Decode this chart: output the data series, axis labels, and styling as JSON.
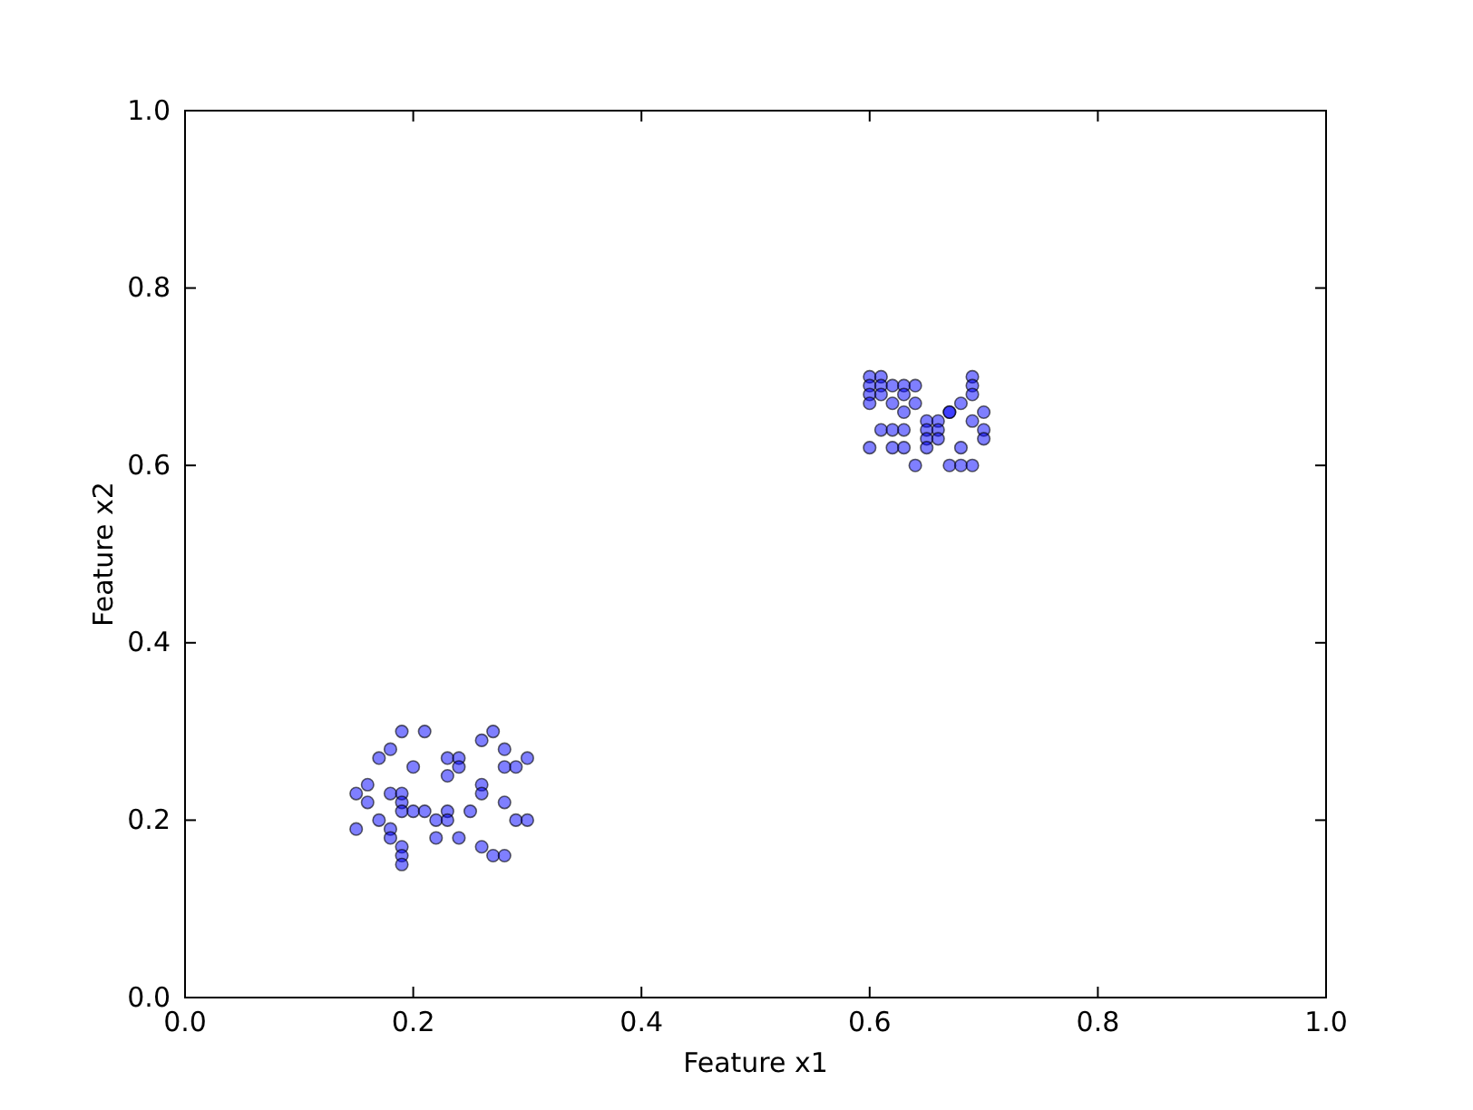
{
  "chart_data": {
    "type": "scatter",
    "xlabel": "Feature x1",
    "ylabel": "Feature x2",
    "xlim": [
      0,
      1
    ],
    "ylim": [
      0,
      1
    ],
    "xticks": [
      {
        "value": 0,
        "label": "0.0"
      },
      {
        "value": 0.2,
        "label": "0.2"
      },
      {
        "value": 0.4,
        "label": "0.4"
      },
      {
        "value": 0.6,
        "label": "0.6"
      },
      {
        "value": 0.8,
        "label": "0.8"
      },
      {
        "value": 1,
        "label": "1.0"
      }
    ],
    "yticks": [
      {
        "value": 0,
        "label": "0.0"
      },
      {
        "value": 0.2,
        "label": "0.2"
      },
      {
        "value": 0.4,
        "label": "0.4"
      },
      {
        "value": 0.6,
        "label": "0.6"
      },
      {
        "value": 0.8,
        "label": "0.8"
      },
      {
        "value": 1,
        "label": "1.0"
      }
    ],
    "grid": false,
    "marker": "circle",
    "series": [
      {
        "color": "#0000ff",
        "x": [
          0.19,
          0.21,
          0.27,
          0.26,
          0.18,
          0.28,
          0.17,
          0.23,
          0.24,
          0.3,
          0.2,
          0.24,
          0.28,
          0.29,
          0.23,
          0.26,
          0.16,
          0.15,
          0.18,
          0.19,
          0.26,
          0.19,
          0.16,
          0.28,
          0.19,
          0.2,
          0.21,
          0.23,
          0.25,
          0.22,
          0.23,
          0.17,
          0.29,
          0.3,
          0.15,
          0.18,
          0.18,
          0.22,
          0.24,
          0.19,
          0.26,
          0.19,
          0.27,
          0.28,
          0.19,
          0.6,
          0.61,
          0.69,
          0.6,
          0.61,
          0.62,
          0.63,
          0.64,
          0.69,
          0.6,
          0.61,
          0.63,
          0.69,
          0.6,
          0.62,
          0.64,
          0.68,
          0.67,
          0.63,
          0.67,
          0.7,
          0.65,
          0.66,
          0.69,
          0.61,
          0.62,
          0.63,
          0.65,
          0.66,
          0.7,
          0.65,
          0.66,
          0.7,
          0.6,
          0.62,
          0.63,
          0.65,
          0.68,
          0.64,
          0.67,
          0.68,
          0.69
        ],
        "values": [
          0.3,
          0.3,
          0.3,
          0.29,
          0.28,
          0.28,
          0.27,
          0.27,
          0.27,
          0.27,
          0.26,
          0.26,
          0.26,
          0.26,
          0.25,
          0.24,
          0.24,
          0.23,
          0.23,
          0.23,
          0.23,
          0.22,
          0.22,
          0.22,
          0.21,
          0.21,
          0.21,
          0.21,
          0.21,
          0.2,
          0.2,
          0.2,
          0.2,
          0.2,
          0.19,
          0.19,
          0.18,
          0.18,
          0.18,
          0.17,
          0.17,
          0.16,
          0.16,
          0.16,
          0.15,
          0.7,
          0.7,
          0.7,
          0.69,
          0.69,
          0.69,
          0.69,
          0.69,
          0.69,
          0.68,
          0.68,
          0.68,
          0.68,
          0.67,
          0.67,
          0.67,
          0.67,
          0.66,
          0.66,
          0.66,
          0.66,
          0.65,
          0.65,
          0.65,
          0.64,
          0.64,
          0.64,
          0.64,
          0.64,
          0.64,
          0.63,
          0.63,
          0.63,
          0.62,
          0.62,
          0.62,
          0.62,
          0.62,
          0.6,
          0.6,
          0.6,
          0.6
        ]
      }
    ]
  }
}
